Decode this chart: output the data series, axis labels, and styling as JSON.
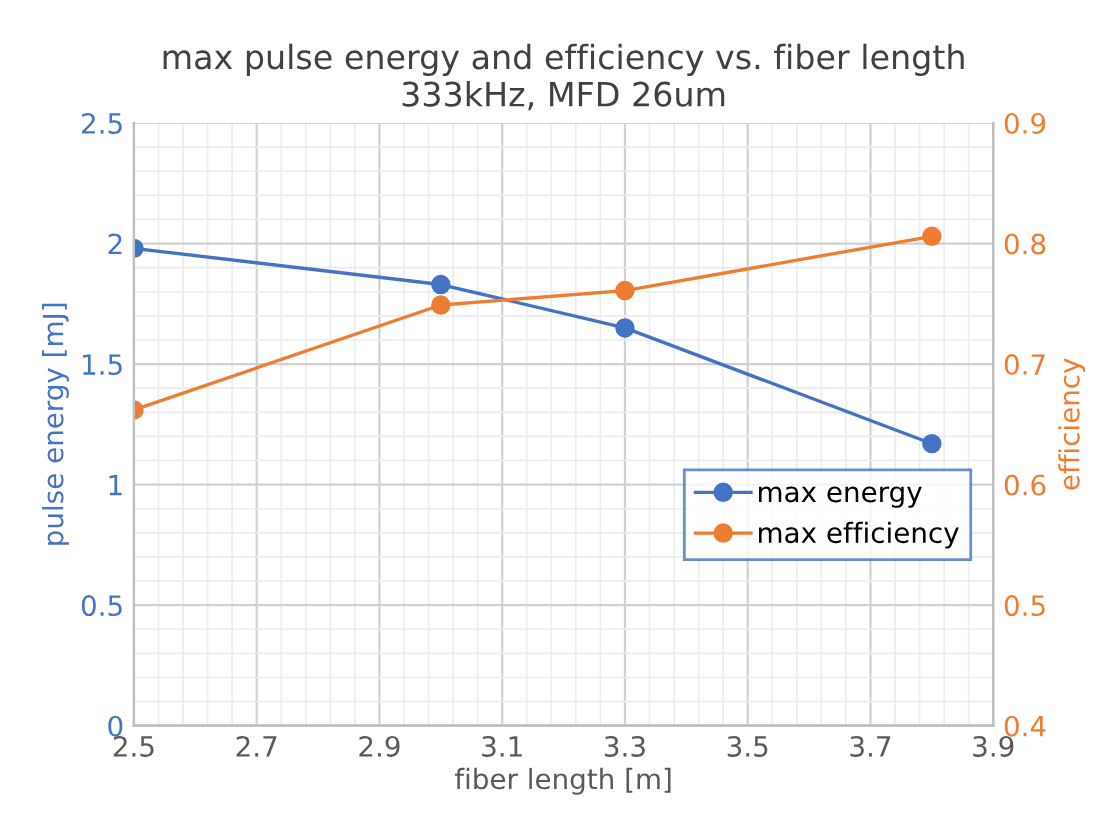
{
  "chart_data": {
    "type": "line",
    "title": "max pulse energy and efficiency vs. fiber length\n333kHz, MFD 26um",
    "xlabel": "fiber length [m]",
    "ylabel": "pulse energy [mJ]",
    "y2label": "efficiency",
    "x": [
      2.5,
      3.0,
      3.3,
      3.8
    ],
    "series": [
      {
        "name": "max energy",
        "color": "#4472c4",
        "values": [
          1.98,
          1.83,
          1.65,
          1.17
        ]
      },
      {
        "name": "max efficiency",
        "color": "#ed7d31",
        "values": [
          0.662,
          0.749,
          0.761,
          0.806
        ],
        "axis": "y2"
      }
    ],
    "xlim": [
      2.5,
      3.9
    ],
    "xticks": [
      2.5,
      2.7,
      2.9,
      3.1,
      3.3,
      3.5,
      3.7,
      3.9
    ],
    "ylim": [
      0,
      2.5
    ],
    "yticks": [
      0,
      0.5,
      1,
      1.5,
      2,
      2.5
    ],
    "y2lim": [
      0.4,
      0.9
    ],
    "y2ticks": [
      0.4,
      0.5,
      0.6,
      0.7,
      0.8,
      0.9
    ],
    "grid": true,
    "legend": "right",
    "marker": "circle",
    "line_style": "solid"
  }
}
